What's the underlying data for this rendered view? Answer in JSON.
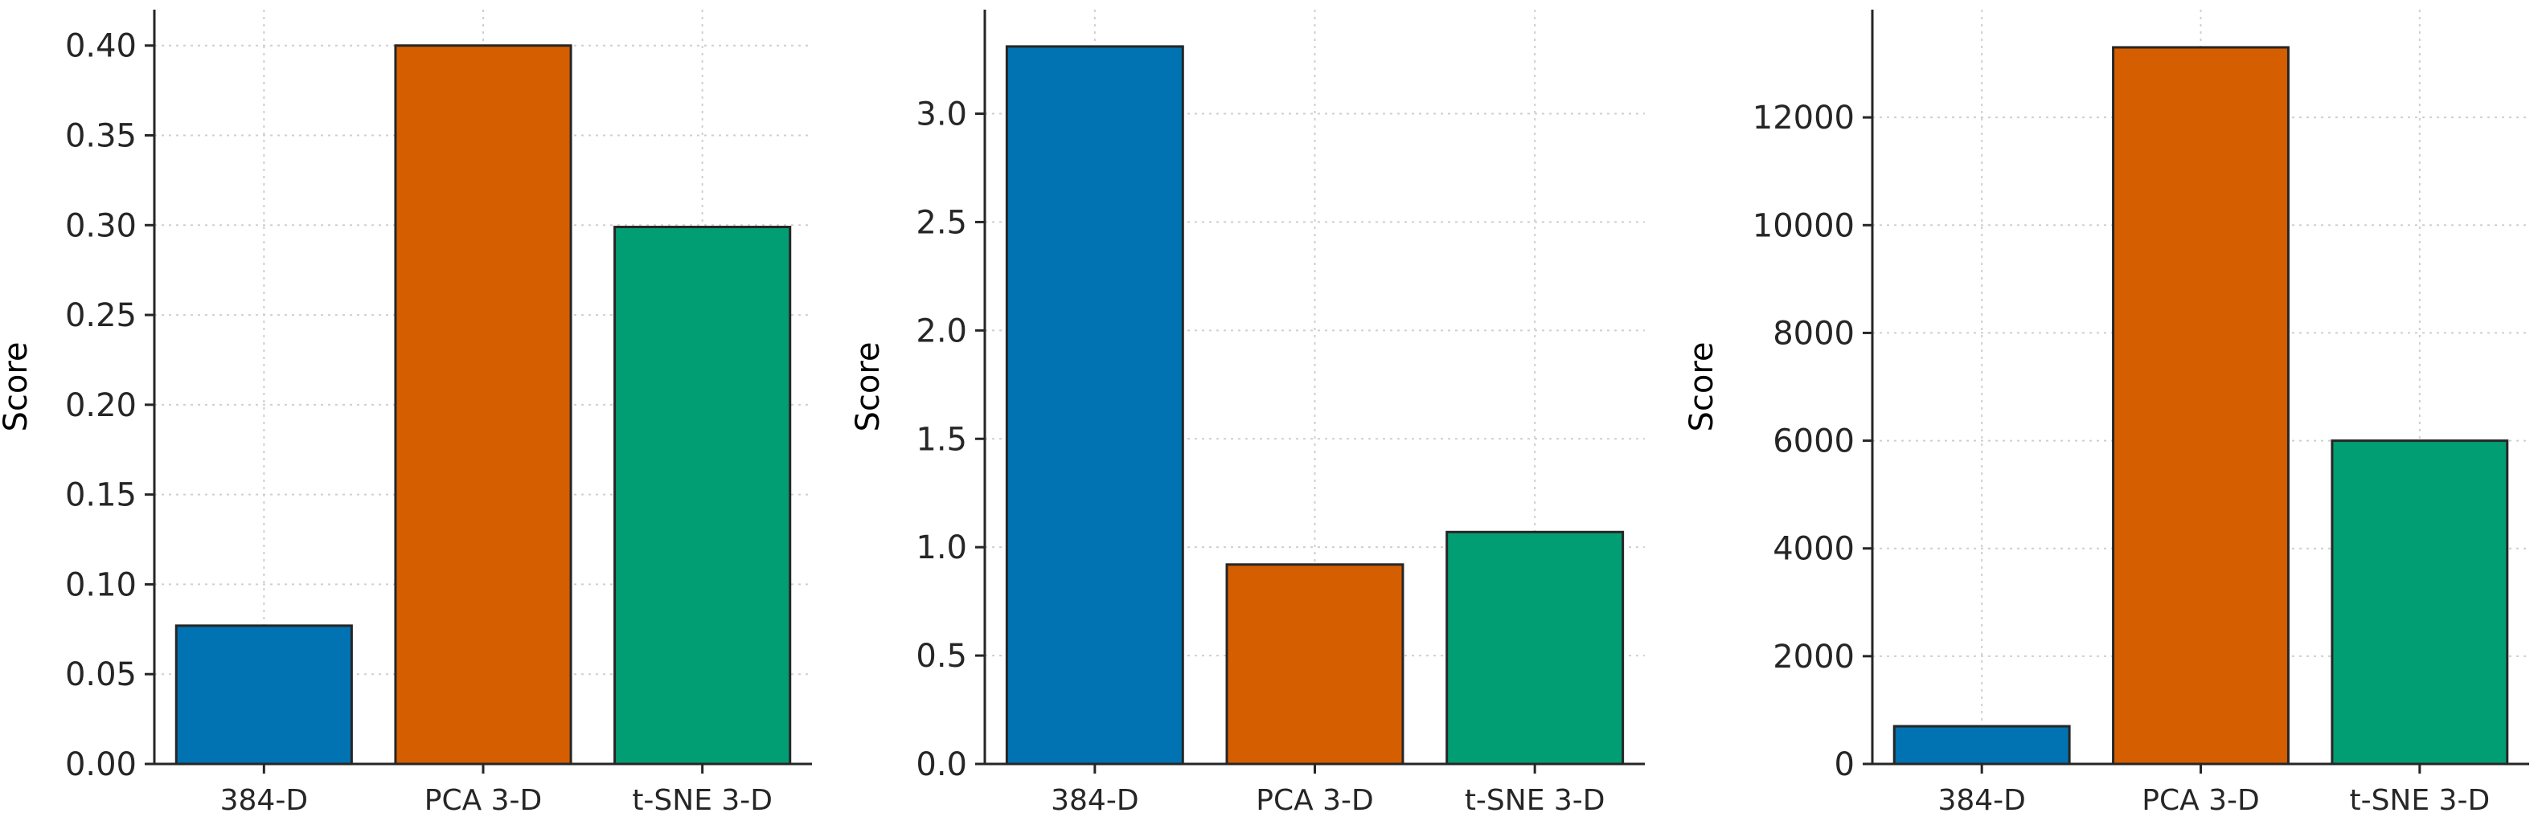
{
  "colors": [
    "#0173b2",
    "#d55e00",
    "#029e73"
  ],
  "chart_data": [
    {
      "type": "bar",
      "title": "",
      "xlabel": "",
      "ylabel": "Score",
      "categories": [
        "384-D",
        "PCA 3-D",
        "t-SNE 3-D"
      ],
      "values": [
        0.077,
        0.4,
        0.299
      ],
      "ylim": [
        0,
        0.42
      ],
      "yticks": [
        0.0,
        0.05,
        0.1,
        0.15,
        0.2,
        0.25,
        0.3,
        0.35,
        0.4
      ],
      "ytick_labels": [
        "0.00",
        "0.05",
        "0.10",
        "0.15",
        "0.20",
        "0.25",
        "0.30",
        "0.35",
        "0.40"
      ],
      "grid": true,
      "legend": "none"
    },
    {
      "type": "bar",
      "title": "",
      "xlabel": "",
      "ylabel": "Score",
      "categories": [
        "384-D",
        "PCA 3-D",
        "t-SNE 3-D"
      ],
      "values": [
        3.31,
        0.92,
        1.07
      ],
      "ylim": [
        0,
        3.48
      ],
      "yticks": [
        0.0,
        0.5,
        1.0,
        1.5,
        2.0,
        2.5,
        3.0
      ],
      "ytick_labels": [
        "0.0",
        "0.5",
        "1.0",
        "1.5",
        "2.0",
        "2.5",
        "3.0"
      ],
      "grid": true,
      "legend": "none"
    },
    {
      "type": "bar",
      "title": "",
      "xlabel": "",
      "ylabel": "Score",
      "categories": [
        "384-D",
        "PCA 3-D",
        "t-SNE 3-D"
      ],
      "values": [
        700,
        13300,
        6000
      ],
      "ylim": [
        0,
        14000
      ],
      "yticks": [
        0,
        2000,
        4000,
        6000,
        8000,
        10000,
        12000
      ],
      "ytick_labels": [
        "0",
        "2000",
        "4000",
        "6000",
        "8000",
        "10000",
        "12000"
      ],
      "grid": true,
      "legend": "none"
    }
  ]
}
